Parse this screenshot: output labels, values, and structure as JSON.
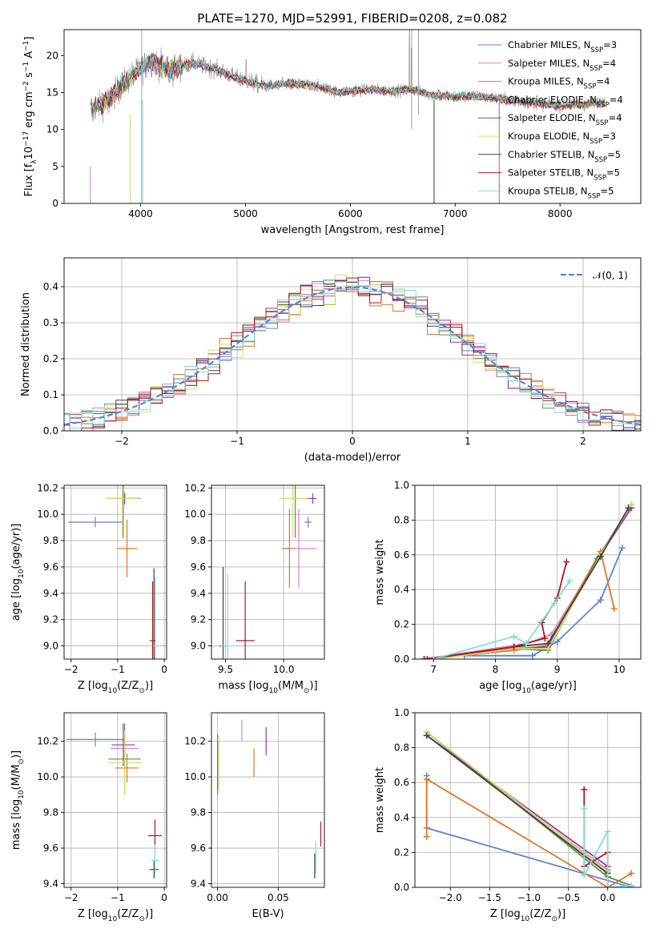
{
  "chart_data": [
    {
      "type": "line",
      "title": "PLATE=1270, MJD=52991, FIBERID=0208, z=0.082",
      "xlabel": "wavelength [Angstrom, rest frame]",
      "ylabel": "Flux [f$_\\lambda$10$^{-17}$ erg cm$^{-2}$ s$^{-1}$ A$^{-1}$]",
      "ylabel_parts": [
        "Flux [f",
        "λ",
        "10",
        "−17",
        " erg cm",
        "−2",
        " s",
        "−1",
        " A",
        "−1",
        "]"
      ],
      "xlim": [
        3270,
        8770
      ],
      "ylim": [
        0,
        23.5
      ],
      "xticks": [
        4000,
        5000,
        6000,
        7000,
        8000
      ],
      "yticks": [
        0,
        5,
        10,
        15,
        20
      ],
      "grid": false,
      "legend_loc": "upper right",
      "data_color": "#8c8c8c",
      "series": [
        {
          "name": "Chabrier MILES, N",
          "sub": "SSP",
          "n": "=3",
          "color": "#5b84d6"
        },
        {
          "name": "Salpeter MILES, N",
          "sub": "SSP",
          "n": "=4",
          "color": "#e37fc3"
        },
        {
          "name": "Kroupa MILES, N",
          "sub": "SSP",
          "n": "=4",
          "color": "#e37424"
        },
        {
          "name": "Chabrier ELODIE, N",
          "sub": "SSP",
          "n": "=4",
          "color": "#5e8c52"
        },
        {
          "name": "Salpeter ELODIE, N",
          "sub": "SSP",
          "n": "=4",
          "color": "#9636a8"
        },
        {
          "name": "Kroupa ELODIE, N",
          "sub": "SSP",
          "n": "=3",
          "color": "#cde265"
        },
        {
          "name": "Chabrier STELIB, N",
          "sub": "SSP",
          "n": "=5",
          "color": "#424242"
        },
        {
          "name": "Salpeter STELIB, N",
          "sub": "SSP",
          "n": "=5",
          "color": "#b5161b"
        },
        {
          "name": "Kroupa STELIB, N",
          "sub": "SSP",
          "n": "=5",
          "color": "#7fdedc"
        }
      ],
      "continuum_points": [
        [
          3520,
          12.6
        ],
        [
          3600,
          13.2
        ],
        [
          3700,
          14.0
        ],
        [
          3800,
          15.6
        ],
        [
          3900,
          17.0
        ],
        [
          4000,
          18.2
        ],
        [
          4100,
          19.2
        ],
        [
          4200,
          18.6
        ],
        [
          4300,
          17.9
        ],
        [
          4400,
          18.6
        ],
        [
          4500,
          19.0
        ],
        [
          4600,
          18.6
        ],
        [
          4700,
          18.2
        ],
        [
          4800,
          17.7
        ],
        [
          4900,
          17.0
        ],
        [
          5000,
          16.6
        ],
        [
          5100,
          16.2
        ],
        [
          5200,
          15.9
        ],
        [
          5300,
          16.0
        ],
        [
          5400,
          16.2
        ],
        [
          5500,
          16.1
        ],
        [
          5600,
          16.0
        ],
        [
          5700,
          15.8
        ],
        [
          5800,
          15.4
        ],
        [
          5900,
          15.0
        ],
        [
          6000,
          15.2
        ],
        [
          6200,
          15.4
        ],
        [
          6400,
          15.2
        ],
        [
          6600,
          15.4
        ],
        [
          6800,
          14.6
        ],
        [
          7000,
          14.4
        ],
        [
          7200,
          14.5
        ],
        [
          7400,
          14.2
        ],
        [
          7600,
          13.8
        ],
        [
          7800,
          13.5
        ],
        [
          8000,
          13.2
        ],
        [
          8200,
          13.3
        ],
        [
          8400,
          13.7
        ]
      ]
    },
    {
      "type": "line",
      "xlabel": "(data-model)/error",
      "ylabel": "Normed distribution",
      "xlim": [
        -2.5,
        2.5
      ],
      "ylim": [
        0,
        0.48
      ],
      "xticks": [
        -2,
        -1,
        0,
        1,
        2
      ],
      "yticks": [
        0.0,
        0.1,
        0.2,
        0.3,
        0.4
      ],
      "grid": true,
      "legend": "𝒩(0, 1)",
      "legend_loc": "upper right",
      "gaussian": {
        "mu": 0,
        "sigma": 1,
        "color": "#5b84d6"
      },
      "bin_width": 0.1
    },
    {
      "type": "scatter",
      "xlabel": "Z [log$_{10}$(Z/Z$_\\odot$)]",
      "ylabel": "age  [log$_{10}$(age/yr)]",
      "xlim": [
        -2.15,
        0.05
      ],
      "ylim": [
        8.9,
        10.22
      ],
      "xticks": [
        -2,
        -1,
        0
      ],
      "yticks": [
        9.0,
        9.2,
        9.4,
        9.6,
        9.8,
        10.0,
        10.2
      ],
      "grid": true,
      "points": [
        {
          "x": -1.48,
          "y": 9.94,
          "xerr": 0.58,
          "yerr": 0.04,
          "series": 0
        },
        {
          "x": -0.85,
          "y": 10.12,
          "xerr": 0.35,
          "yerr": 0.05,
          "series": 1
        },
        {
          "x": -0.8,
          "y": 9.74,
          "xerr": 0.22,
          "yerr": 0.22,
          "series": 2
        },
        {
          "x": -0.88,
          "y": 10.12,
          "xerr": 0.35,
          "yerr": 0.3,
          "series": 3
        },
        {
          "x": -0.85,
          "y": 10.12,
          "xerr": 0.3,
          "yerr": 0.04,
          "series": 4
        },
        {
          "x": -0.9,
          "y": 10.12,
          "xerr": 0.35,
          "yerr": 0.3,
          "series": 5
        },
        {
          "x": -0.22,
          "y": 9.04,
          "xerr": 0.02,
          "yerr": 0.55,
          "series": 6
        },
        {
          "x": -0.25,
          "y": 9.04,
          "xerr": 0.06,
          "yerr": 0.45,
          "series": 7
        },
        {
          "x": -0.19,
          "y": 9.0,
          "xerr": 0.04,
          "yerr": 0.52,
          "series": 8
        }
      ]
    },
    {
      "type": "scatter",
      "xlabel": "mass [log$_{10}$(M/M$_\\odot$)]",
      "ylabel": "",
      "xlim": [
        9.38,
        10.35
      ],
      "ylim": [
        8.9,
        10.22
      ],
      "xticks": [
        9.5,
        10.0
      ],
      "yticks": [
        9.0,
        9.2,
        9.4,
        9.6,
        9.8,
        10.0,
        10.2
      ],
      "grid": true,
      "points": [
        {
          "x": 10.21,
          "y": 9.94,
          "xerr": 0.03,
          "yerr": 0.04,
          "series": 0
        },
        {
          "x": 10.13,
          "y": 9.74,
          "xerr": 0.15,
          "yerr": 0.3,
          "series": 1
        },
        {
          "x": 10.05,
          "y": 9.74,
          "xerr": 0.05,
          "yerr": 0.3,
          "series": 2
        },
        {
          "x": 10.1,
          "y": 10.12,
          "xerr": 0.12,
          "yerr": 0.3,
          "series": 3
        },
        {
          "x": 10.25,
          "y": 10.12,
          "xerr": 0.03,
          "yerr": 0.04,
          "series": 4
        },
        {
          "x": 10.08,
          "y": 10.12,
          "xerr": 0.12,
          "yerr": 0.3,
          "series": 5
        },
        {
          "x": 9.48,
          "y": 9.0,
          "xerr": 0.03,
          "yerr": 0.6,
          "series": 6
        },
        {
          "x": 9.67,
          "y": 9.04,
          "xerr": 0.08,
          "yerr": 0.45,
          "series": 7
        },
        {
          "x": 9.52,
          "y": 9.0,
          "xerr": 0.06,
          "yerr": 0.55,
          "series": 8
        }
      ]
    },
    {
      "type": "line",
      "xlabel": "age  [log$_{10}$(age/yr)]",
      "ylabel": "mass weight",
      "xlim": [
        6.7,
        10.35
      ],
      "ylim": [
        0,
        1.0
      ],
      "xticks": [
        7,
        8,
        9,
        10
      ],
      "yticks": [
        0.0,
        0.2,
        0.4,
        0.6,
        0.8,
        1.0
      ],
      "grid": true,
      "series": [
        {
          "series": 0,
          "points": [
            [
              7.5,
              0.02
            ],
            [
              8.6,
              0.02
            ],
            [
              9.0,
              0.1
            ],
            [
              9.7,
              0.34
            ],
            [
              10.05,
              0.64
            ]
          ]
        },
        {
          "series": 1,
          "points": [
            [
              6.85,
              0.0
            ],
            [
              8.5,
              0.09
            ],
            [
              8.9,
              0.14
            ],
            [
              9.7,
              0.6
            ],
            [
              10.2,
              0.87
            ]
          ]
        },
        {
          "series": 2,
          "points": [
            [
              6.85,
              0.0
            ],
            [
              8.3,
              0.05
            ],
            [
              8.85,
              0.08
            ],
            [
              9.7,
              0.62
            ],
            [
              9.92,
              0.29
            ]
          ]
        },
        {
          "series": 3,
          "points": [
            [
              7.0,
              0.0
            ],
            [
              8.3,
              0.06
            ],
            [
              8.85,
              0.05
            ],
            [
              9.65,
              0.58
            ],
            [
              10.2,
              0.89
            ]
          ]
        },
        {
          "series": 4,
          "points": [
            [
              6.85,
              0.0
            ],
            [
              8.3,
              0.06
            ],
            [
              8.85,
              0.07
            ],
            [
              9.7,
              0.6
            ],
            [
              10.2,
              0.87
            ]
          ]
        },
        {
          "series": 5,
          "points": [
            [
              7.0,
              0.0
            ],
            [
              8.3,
              0.06
            ],
            [
              8.85,
              0.06
            ],
            [
              9.7,
              0.6
            ],
            [
              10.2,
              0.89
            ]
          ]
        },
        {
          "series": 6,
          "points": [
            [
              6.9,
              0.0
            ],
            [
              8.3,
              0.07
            ],
            [
              8.85,
              0.09
            ],
            [
              9.7,
              0.59
            ],
            [
              10.15,
              0.87
            ]
          ]
        },
        {
          "series": 7,
          "points": [
            [
              6.85,
              0.0
            ],
            [
              8.3,
              0.07
            ],
            [
              8.8,
              0.12
            ],
            [
              8.75,
              0.21
            ],
            [
              9.0,
              0.35
            ],
            [
              9.15,
              0.56
            ]
          ]
        },
        {
          "series": 8,
          "points": [
            [
              7.0,
              0.0
            ],
            [
              8.3,
              0.13
            ],
            [
              8.5,
              0.09
            ],
            [
              8.95,
              0.32
            ],
            [
              9.2,
              0.45
            ]
          ]
        }
      ]
    },
    {
      "type": "scatter",
      "xlabel": "Z [log$_{10}$(Z/Z$_\\odot$)]",
      "ylabel": "mass [log$_{10}$(M/M$_\\odot$)]",
      "xlim": [
        -2.15,
        0.05
      ],
      "ylim": [
        9.38,
        10.36
      ],
      "xticks": [
        -2,
        -1,
        0
      ],
      "yticks": [
        9.4,
        9.6,
        9.8,
        10.0,
        10.2
      ],
      "grid": true,
      "points": [
        {
          "x": -1.48,
          "y": 10.21,
          "xerr": 0.62,
          "yerr": 0.04,
          "series": 0
        },
        {
          "x": -0.85,
          "y": 10.16,
          "xerr": 0.3,
          "yerr": 0.08,
          "series": 1
        },
        {
          "x": -0.8,
          "y": 10.05,
          "xerr": 0.25,
          "yerr": 0.08,
          "series": 2
        },
        {
          "x": -0.85,
          "y": 10.1,
          "xerr": 0.35,
          "yerr": 0.2,
          "series": 3
        },
        {
          "x": -0.88,
          "y": 10.18,
          "xerr": 0.25,
          "yerr": 0.12,
          "series": 4
        },
        {
          "x": -0.85,
          "y": 10.08,
          "xerr": 0.35,
          "yerr": 0.18,
          "series": 5
        },
        {
          "x": -0.22,
          "y": 9.48,
          "xerr": 0.1,
          "yerr": 0.05,
          "series": 6
        },
        {
          "x": -0.2,
          "y": 9.67,
          "xerr": 0.15,
          "yerr": 0.09,
          "series": 7
        },
        {
          "x": -0.2,
          "y": 9.53,
          "xerr": 0.08,
          "yerr": 0.09,
          "series": 8
        }
      ]
    },
    {
      "type": "scatter",
      "xlabel": "E(B-V)",
      "ylabel": "",
      "xlim": [
        -0.005,
        0.088
      ],
      "ylim": [
        9.38,
        10.36
      ],
      "xticks": [
        0.0,
        0.05
      ],
      "yticks": [
        9.4,
        9.6,
        9.8,
        10.0,
        10.2
      ],
      "grid": true,
      "points": [
        {
          "x": 0.0,
          "y": 10.08,
          "yerr": 0.16,
          "series": 0
        },
        {
          "x": 0.02,
          "y": 10.26,
          "yerr": 0.06,
          "series": 1
        },
        {
          "x": 0.03,
          "y": 10.08,
          "yerr": 0.08,
          "series": 2
        },
        {
          "x": 0.0,
          "y": 10.05,
          "yerr": 0.15,
          "series": 3
        },
        {
          "x": 0.04,
          "y": 10.2,
          "yerr": 0.08,
          "series": 4
        },
        {
          "x": 0.001,
          "y": 10.08,
          "yerr": 0.15,
          "series": 5
        },
        {
          "x": 0.08,
          "y": 9.5,
          "yerr": 0.07,
          "series": 6
        },
        {
          "x": 0.085,
          "y": 9.68,
          "yerr": 0.07,
          "series": 7
        },
        {
          "x": 0.081,
          "y": 9.55,
          "yerr": 0.09,
          "series": 8
        }
      ]
    },
    {
      "type": "line",
      "xlabel": "Z [log$_{10}$(Z/Z$_\\odot$)]",
      "ylabel": "mass weight",
      "xlim": [
        -2.45,
        0.42
      ],
      "ylim": [
        0,
        1.0
      ],
      "xticks": [
        -2.0,
        -1.5,
        -1.0,
        -0.5,
        0.0
      ],
      "yticks": [
        0.0,
        0.2,
        0.4,
        0.6,
        0.8,
        1.0
      ],
      "grid": true,
      "series": [
        {
          "series": 0,
          "points": [
            [
              -2.3,
              0.64
            ],
            [
              -2.3,
              0.34
            ],
            [
              0.3,
              0.0
            ]
          ]
        },
        {
          "series": 1,
          "points": [
            [
              -2.3,
              0.87
            ],
            [
              0.0,
              0.1
            ]
          ]
        },
        {
          "series": 2,
          "points": [
            [
              -2.3,
              0.29
            ],
            [
              -2.3,
              0.62
            ],
            [
              0.0,
              0.0
            ],
            [
              0.3,
              0.08
            ]
          ]
        },
        {
          "series": 3,
          "points": [
            [
              -2.3,
              0.89
            ],
            [
              0.0,
              0.06
            ],
            [
              0.3,
              0.01
            ]
          ]
        },
        {
          "series": 4,
          "points": [
            [
              -2.3,
              0.87
            ],
            [
              0.0,
              0.12
            ]
          ]
        },
        {
          "series": 5,
          "points": [
            [
              -2.3,
              0.89
            ],
            [
              0.0,
              0.09
            ]
          ]
        },
        {
          "series": 6,
          "points": [
            [
              -2.3,
              0.87
            ],
            [
              0.0,
              0.08
            ]
          ]
        },
        {
          "series": 7,
          "points": [
            [
              -0.3,
              0.56
            ],
            [
              -0.3,
              0.12
            ],
            [
              0.0,
              0.2
            ],
            [
              0.0,
              0.0
            ]
          ]
        },
        {
          "series": 8,
          "points": [
            [
              -0.3,
              0.45
            ],
            [
              -0.3,
              0.07
            ],
            [
              0.0,
              0.32
            ],
            [
              0.0,
              0.0
            ],
            [
              0.3,
              0.01
            ]
          ]
        }
      ]
    }
  ]
}
